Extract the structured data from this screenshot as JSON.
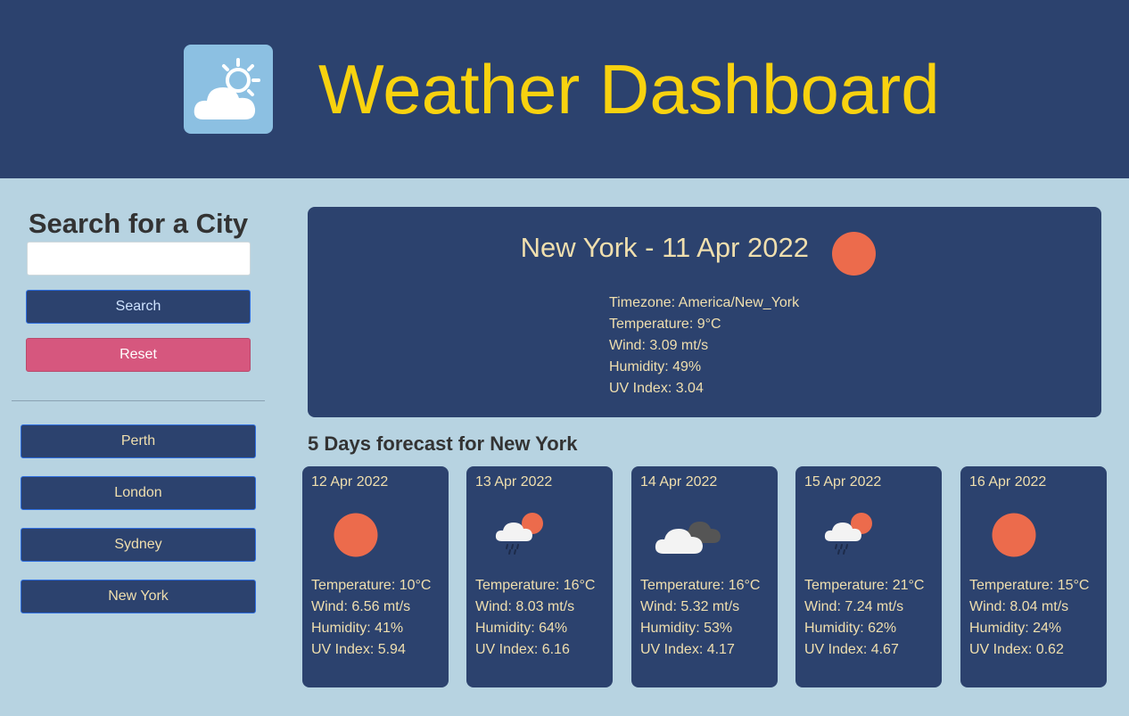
{
  "header": {
    "title": "Weather Dashboard",
    "logo_icon": "sun-cloud-icon"
  },
  "sidebar": {
    "heading": "Search for a City",
    "search_value": "",
    "search_label": "Search",
    "reset_label": "Reset",
    "cities": [
      "Perth",
      "London",
      "Sydney",
      "New York"
    ]
  },
  "current": {
    "title": "New York - 11 Apr 2022",
    "icon": "sun-icon",
    "timezone": "Timezone: America/New_York",
    "temperature": "Temperature: 9°C",
    "wind": "Wind: 3.09 mt/s",
    "humidity": "Humidity: 49%",
    "uv": "UV Index: 3.04"
  },
  "forecast_heading": "5 Days forecast for New York",
  "forecast": [
    {
      "date": "12 Apr 2022",
      "icon": "sun-icon",
      "temperature": "Temperature: 10°C",
      "wind": "Wind: 6.56 mt/s",
      "humidity": "Humidity: 41%",
      "uv": "UV Index: 5.94"
    },
    {
      "date": "13 Apr 2022",
      "icon": "sun-rain-cloud-icon",
      "temperature": "Temperature: 16°C",
      "wind": "Wind: 8.03 mt/s",
      "humidity": "Humidity: 64%",
      "uv": "UV Index: 6.16"
    },
    {
      "date": "14 Apr 2022",
      "icon": "clouds-icon",
      "temperature": "Temperature: 16°C",
      "wind": "Wind: 5.32 mt/s",
      "humidity": "Humidity: 53%",
      "uv": "UV Index: 4.17"
    },
    {
      "date": "15 Apr 2022",
      "icon": "sun-rain-cloud-icon",
      "temperature": "Temperature: 21°C",
      "wind": "Wind: 7.24 mt/s",
      "humidity": "Humidity: 62%",
      "uv": "UV Index: 4.67"
    },
    {
      "date": "16 Apr 2022",
      "icon": "sun-icon",
      "temperature": "Temperature: 15°C",
      "wind": "Wind: 8.04 mt/s",
      "humidity": "Humidity: 24%",
      "uv": "UV Index: 0.62"
    }
  ],
  "colors": {
    "header_bg": "#2c426e",
    "title": "#f8d20f",
    "page_bg": "#b7d3e1",
    "card_bg": "#2c426e",
    "card_text": "#f0dfae",
    "sun": "#ec6b4c",
    "reset": "#d6577e"
  }
}
